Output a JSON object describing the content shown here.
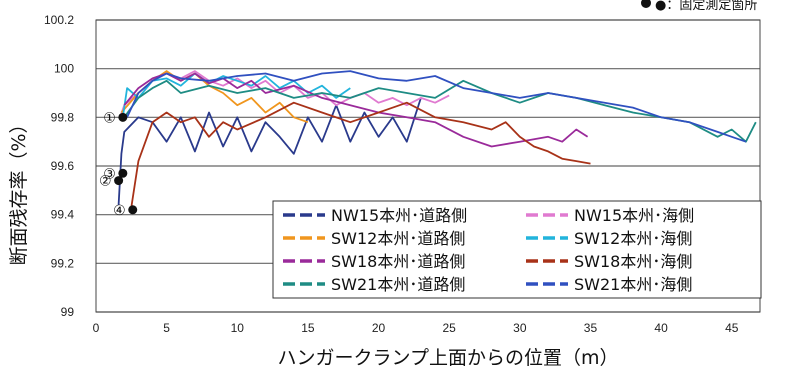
{
  "chart_data": {
    "type": "line",
    "title": "",
    "xlabel": "ハンガークランプ上面からの位置（m）",
    "ylabel": "断面残存率（%）",
    "xlim": [
      0,
      47
    ],
    "ylim": [
      99,
      100.2
    ],
    "x_ticks": [
      0,
      5,
      10,
      15,
      20,
      25,
      30,
      35,
      40,
      45
    ],
    "y_ticks": [
      99,
      99.2,
      99.4,
      99.6,
      99.8,
      100,
      100.2
    ],
    "y_tick_labels": [
      "99",
      "99.2",
      "99.4",
      "99.6",
      "99.8",
      "100",
      "100.2"
    ],
    "grid": "horizontal",
    "legend_position": "lower-right",
    "annotation_note": "●：固定測定箇所",
    "series": [
      {
        "name": "NW15本州･道路側",
        "color": "#2a3a8c",
        "points": [
          [
            1.6,
            99.44
          ],
          [
            1.8,
            99.65
          ],
          [
            2,
            99.74
          ],
          [
            3,
            99.8
          ],
          [
            4,
            99.78
          ],
          [
            5,
            99.7
          ],
          [
            6,
            99.8
          ],
          [
            7,
            99.66
          ],
          [
            8,
            99.82
          ],
          [
            9,
            99.68
          ],
          [
            10,
            99.8
          ],
          [
            11,
            99.66
          ],
          [
            12,
            99.78
          ],
          [
            13,
            99.72
          ],
          [
            14,
            99.65
          ],
          [
            15,
            99.8
          ],
          [
            16,
            99.7
          ],
          [
            17,
            99.85
          ],
          [
            18,
            99.7
          ],
          [
            19,
            99.82
          ],
          [
            20,
            99.72
          ],
          [
            21,
            99.8
          ],
          [
            22,
            99.7
          ],
          [
            23,
            99.88
          ]
        ]
      },
      {
        "name": "NW15本州･海側",
        "color": "#e07ad0",
        "points": [
          [
            1.7,
            99.8
          ],
          [
            2,
            99.85
          ],
          [
            3,
            99.9
          ],
          [
            4,
            99.95
          ],
          [
            5,
            99.98
          ],
          [
            6,
            99.96
          ],
          [
            7,
            99.99
          ],
          [
            8,
            99.95
          ],
          [
            9,
            99.93
          ],
          [
            10,
            99.96
          ],
          [
            11,
            99.92
          ],
          [
            12,
            99.95
          ],
          [
            13,
            99.9
          ],
          [
            14,
            99.93
          ],
          [
            15,
            99.88
          ],
          [
            16,
            99.9
          ],
          [
            17,
            99.85
          ],
          [
            18,
            99.88
          ],
          [
            19,
            99.9
          ],
          [
            20,
            99.86
          ],
          [
            21,
            99.88
          ],
          [
            22,
            99.85
          ],
          [
            23,
            99.88
          ],
          [
            24,
            99.86
          ],
          [
            25,
            99.89
          ]
        ]
      },
      {
        "name": "SW12本州･道路側",
        "color": "#f0961e",
        "points": [
          [
            1.8,
            99.82
          ],
          [
            3,
            99.9
          ],
          [
            4,
            99.95
          ],
          [
            5,
            99.99
          ],
          [
            6,
            99.95
          ],
          [
            7,
            99.98
          ],
          [
            8,
            99.93
          ],
          [
            9,
            99.9
          ],
          [
            10,
            99.85
          ],
          [
            11,
            99.88
          ],
          [
            12,
            99.82
          ],
          [
            13,
            99.86
          ],
          [
            14,
            99.8
          ],
          [
            15,
            99.78
          ]
        ]
      },
      {
        "name": "SW12本州･海側",
        "color": "#22b4dc",
        "points": [
          [
            1.9,
            99.8
          ],
          [
            2.2,
            99.92
          ],
          [
            3,
            99.88
          ],
          [
            4,
            99.95
          ],
          [
            5,
            99.96
          ],
          [
            6,
            99.93
          ],
          [
            7,
            99.98
          ],
          [
            8,
            99.94
          ],
          [
            9,
            99.97
          ],
          [
            10,
            99.95
          ],
          [
            11,
            99.93
          ],
          [
            12,
            99.97
          ],
          [
            13,
            99.92
          ],
          [
            14,
            99.95
          ],
          [
            15,
            99.9
          ],
          [
            16,
            99.93
          ],
          [
            17,
            99.88
          ],
          [
            18,
            99.92
          ]
        ]
      },
      {
        "name": "SW18本州･道路側",
        "color": "#9a2a9a",
        "points": [
          [
            2,
            99.85
          ],
          [
            3,
            99.92
          ],
          [
            4,
            99.96
          ],
          [
            5,
            99.98
          ],
          [
            6,
            99.95
          ],
          [
            7,
            99.98
          ],
          [
            8,
            99.94
          ],
          [
            9,
            99.96
          ],
          [
            10,
            99.92
          ],
          [
            11,
            99.95
          ],
          [
            12,
            99.9
          ],
          [
            14,
            99.93
          ],
          [
            16,
            99.88
          ],
          [
            18,
            99.85
          ],
          [
            20,
            99.82
          ],
          [
            22,
            99.8
          ],
          [
            24,
            99.78
          ],
          [
            26,
            99.72
          ],
          [
            28,
            99.68
          ],
          [
            30,
            99.7
          ],
          [
            32,
            99.72
          ],
          [
            33,
            99.7
          ],
          [
            34,
            99.75
          ],
          [
            34.8,
            99.72
          ]
        ]
      },
      {
        "name": "SW18本州･海側",
        "color": "#a83218",
        "points": [
          [
            2.5,
            99.43
          ],
          [
            3,
            99.62
          ],
          [
            4,
            99.78
          ],
          [
            5,
            99.82
          ],
          [
            6,
            99.78
          ],
          [
            7,
            99.8
          ],
          [
            8,
            99.72
          ],
          [
            9,
            99.78
          ],
          [
            10,
            99.75
          ],
          [
            12,
            99.8
          ],
          [
            14,
            99.86
          ],
          [
            16,
            99.82
          ],
          [
            18,
            99.78
          ],
          [
            20,
            99.82
          ],
          [
            22,
            99.86
          ],
          [
            24,
            99.8
          ],
          [
            26,
            99.78
          ],
          [
            28,
            99.75
          ],
          [
            29,
            99.78
          ],
          [
            30,
            99.72
          ],
          [
            31,
            99.68
          ],
          [
            32,
            99.66
          ],
          [
            33,
            99.63
          ],
          [
            34,
            99.62
          ],
          [
            35,
            99.61
          ]
        ]
      },
      {
        "name": "SW21本州･道路側",
        "color": "#1e8c84",
        "points": [
          [
            2,
            99.8
          ],
          [
            3,
            99.88
          ],
          [
            4,
            99.92
          ],
          [
            5,
            99.95
          ],
          [
            6,
            99.9
          ],
          [
            8,
            99.93
          ],
          [
            10,
            99.9
          ],
          [
            12,
            99.92
          ],
          [
            14,
            99.88
          ],
          [
            16,
            99.9
          ],
          [
            18,
            99.88
          ],
          [
            20,
            99.92
          ],
          [
            22,
            99.9
          ],
          [
            24,
            99.88
          ],
          [
            26,
            99.95
          ],
          [
            28,
            99.9
          ],
          [
            30,
            99.86
          ],
          [
            32,
            99.9
          ],
          [
            34,
            99.88
          ],
          [
            36,
            99.85
          ],
          [
            38,
            99.82
          ],
          [
            40,
            99.8
          ],
          [
            42,
            99.78
          ],
          [
            44,
            99.72
          ],
          [
            45,
            99.75
          ],
          [
            46,
            99.7
          ],
          [
            46.7,
            99.78
          ]
        ]
      },
      {
        "name": "SW21本州･海側",
        "color": "#3050c0",
        "points": [
          [
            2.2,
            99.8
          ],
          [
            3,
            99.9
          ],
          [
            4,
            99.95
          ],
          [
            5,
            99.98
          ],
          [
            6,
            99.96
          ],
          [
            8,
            99.95
          ],
          [
            10,
            99.97
          ],
          [
            12,
            99.98
          ],
          [
            14,
            99.95
          ],
          [
            16,
            99.98
          ],
          [
            18,
            99.99
          ],
          [
            20,
            99.96
          ],
          [
            22,
            99.95
          ],
          [
            24,
            99.97
          ],
          [
            26,
            99.92
          ],
          [
            28,
            99.9
          ],
          [
            30,
            99.88
          ],
          [
            32,
            99.9
          ],
          [
            34,
            99.88
          ],
          [
            36,
            99.86
          ],
          [
            38,
            99.84
          ],
          [
            40,
            99.8
          ],
          [
            42,
            99.78
          ],
          [
            44,
            99.74
          ],
          [
            45,
            99.72
          ],
          [
            46,
            99.7
          ]
        ]
      }
    ],
    "fixed_points": [
      {
        "label": "①",
        "x": 1.9,
        "y": 99.8
      },
      {
        "label": "②",
        "x": 1.6,
        "y": 99.54
      },
      {
        "label": "③",
        "x": 1.9,
        "y": 99.57
      },
      {
        "label": "④",
        "x": 2.6,
        "y": 99.42
      }
    ]
  }
}
